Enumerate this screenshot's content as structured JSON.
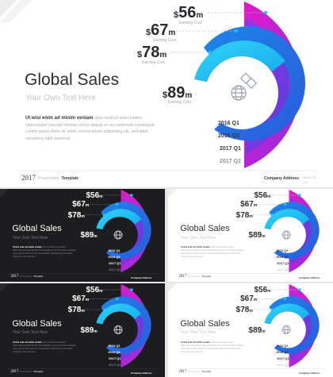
{
  "slide": {
    "title": "Global Sales",
    "subtitle": "Your Own Text Here",
    "body_bold": "Ut wisi enim ad minim veniam",
    "body_text_1": ", quis nostrud exerci tation",
    "body_text_2": "ullamcorper suscipit lobortis nisl ut aliquip ex ea commodo consequat.",
    "body_text_3": "Lorem ipsum dolor sit amet, consectetuer adipiscing elit, sed diam",
    "body_text_4": "nonummy nibh euismod.",
    "year": "2017",
    "footer_left": "Presentation",
    "footer_template": "Template",
    "footer_company": "Company Address",
    "footer_right_small": "Green St",
    "footer_right_small_2": "Ltd.",
    "metric_label": "Earning Cost",
    "quarters": [
      "2016 Q1",
      "2016 Q3",
      "2017 Q1",
      "2017 Q2"
    ],
    "values": [
      {
        "num": "56",
        "unit": "m"
      },
      {
        "num": "67",
        "unit": "m"
      },
      {
        "num": "78",
        "unit": "m"
      },
      {
        "num": "89",
        "unit": "m"
      }
    ]
  },
  "colors": {
    "ring_1": "#19c3f3",
    "ring_2": "#1a74e0",
    "ring_3": "#7a39e8",
    "ring_4": "#d41fd2",
    "dark_bg": "#1d1d1f",
    "light_bg": "#ffffff"
  },
  "icons": [
    "globe-icon",
    "puzzle-icon"
  ]
}
